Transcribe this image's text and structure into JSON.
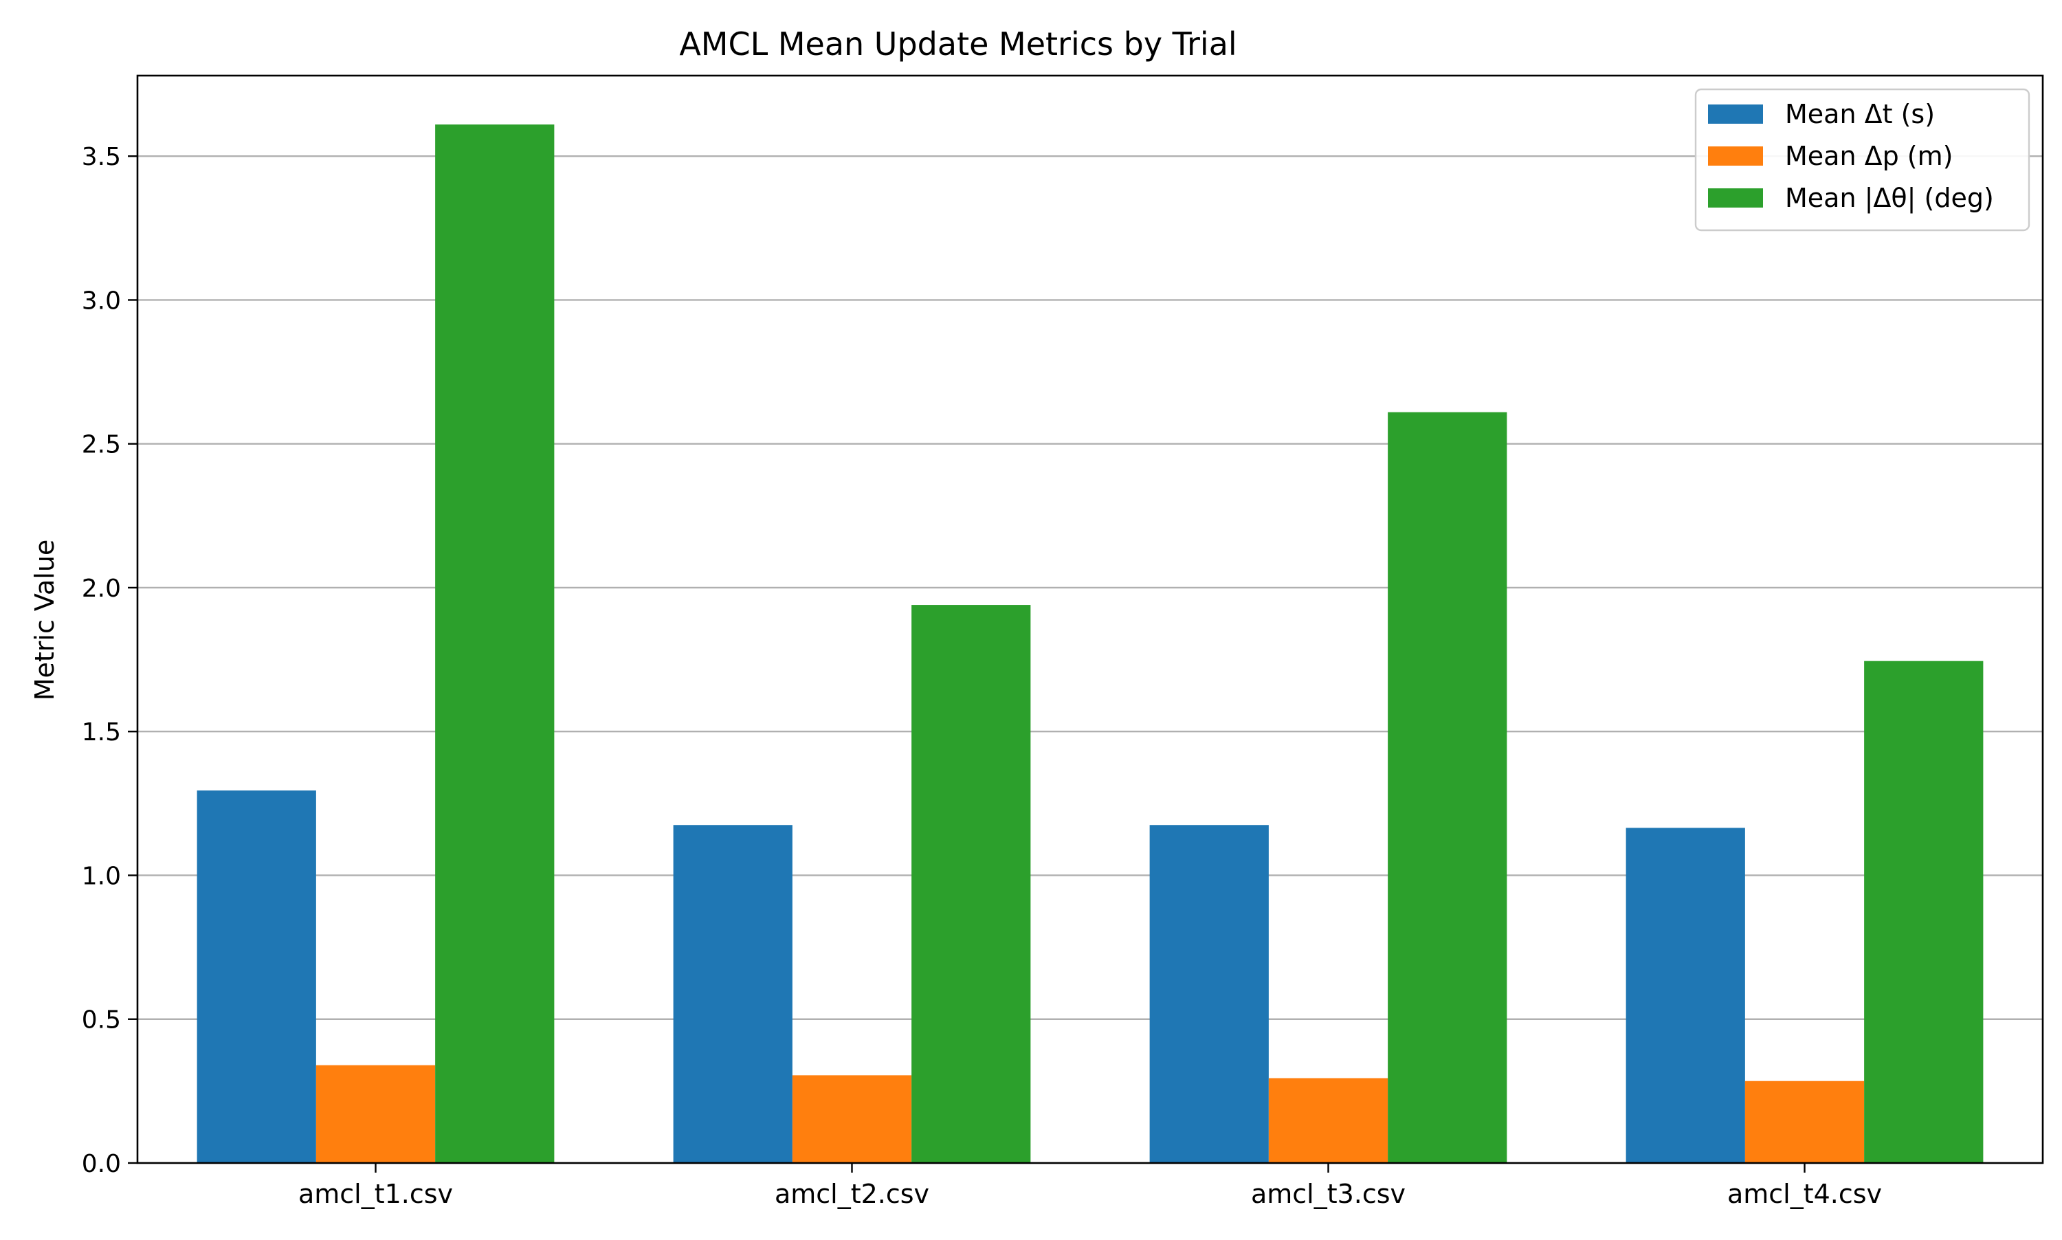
{
  "chart_data": {
    "type": "bar",
    "title": "AMCL Mean Update Metrics by Trial",
    "xlabel": "",
    "ylabel": "Metric Value",
    "categories": [
      "amcl_t1.csv",
      "amcl_t2.csv",
      "amcl_t3.csv",
      "amcl_t4.csv"
    ],
    "series": [
      {
        "name": "Mean Δt (s)",
        "color": "#1f77b4",
        "values": [
          1.295,
          1.175,
          1.175,
          1.165
        ]
      },
      {
        "name": "Mean Δp (m)",
        "color": "#ff7f0e",
        "values": [
          0.34,
          0.305,
          0.295,
          0.285
        ]
      },
      {
        "name": "Mean |Δθ| (deg)",
        "color": "#2ca02c",
        "values": [
          3.61,
          1.94,
          2.61,
          1.745
        ]
      }
    ],
    "ylim": [
      0,
      3.78
    ],
    "yticks": [
      "0.0",
      "0.5",
      "1.0",
      "1.5",
      "2.0",
      "2.5",
      "3.0",
      "3.5"
    ],
    "grid": "y",
    "legend_position": "top-right"
  }
}
